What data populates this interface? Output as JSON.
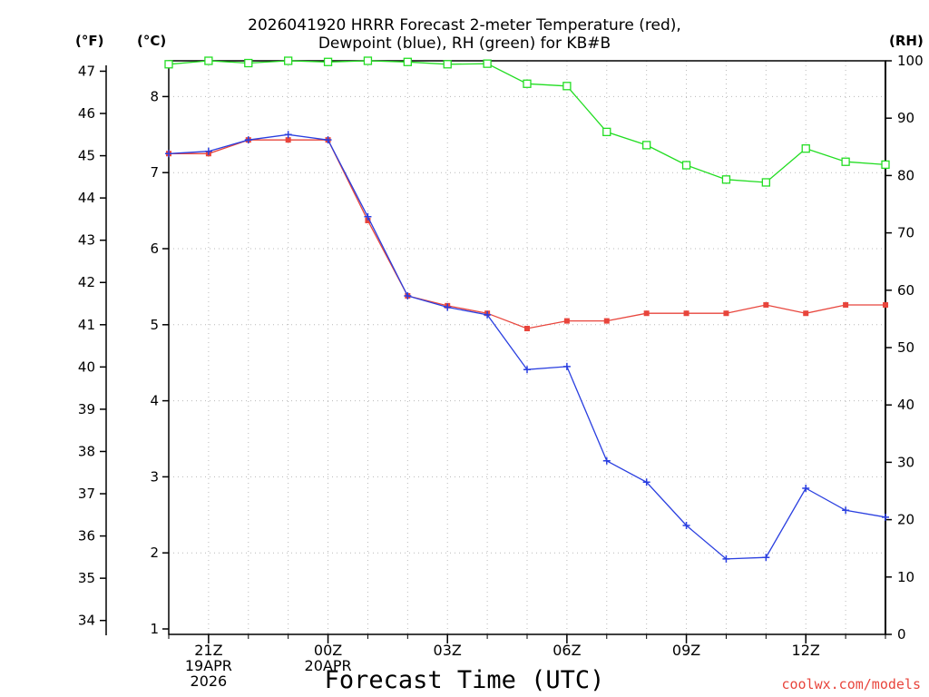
{
  "header": {
    "title_line1": "2026041920 HRRR Forecast 2-meter Temperature (red),",
    "title_line2": "Dewpoint (blue), RH (green) for KB#B",
    "unit_f": "(°F)",
    "unit_c": "(°C)",
    "unit_rh": "(RH)"
  },
  "footer": {
    "xlabel": "Forecast Time (UTC)",
    "credit": "coolwx.com/models"
  },
  "colors": {
    "temperature": "#e8453c",
    "dewpoint": "#2a3fe0",
    "rh": "#22dd22",
    "grid": "#b8b8b8"
  },
  "chart_data": {
    "type": "line",
    "x_hours": [
      0,
      1,
      2,
      3,
      4,
      5,
      6,
      7,
      8,
      9,
      10,
      11,
      12,
      13,
      14,
      15,
      16,
      17,
      18
    ],
    "x_tick_labels": [
      {
        "hour": 1,
        "lines": [
          "21Z",
          "19APR",
          "2026"
        ]
      },
      {
        "hour": 4,
        "lines": [
          "00Z",
          "20APR"
        ]
      },
      {
        "hour": 7,
        "lines": [
          "03Z"
        ]
      },
      {
        "hour": 10,
        "lines": [
          "06Z"
        ]
      },
      {
        "hour": 13,
        "lines": [
          "09Z"
        ]
      },
      {
        "hour": 16,
        "lines": [
          "12Z"
        ]
      }
    ],
    "xlim": [
      0,
      18
    ],
    "y_left_c": {
      "label": "(°C)",
      "range": [
        0.9,
        8.45
      ],
      "ticks": [
        1,
        2,
        3,
        4,
        5,
        6,
        7,
        8
      ]
    },
    "y_left_f": {
      "label": "(°F)",
      "ticks": [
        34,
        35,
        36,
        37,
        38,
        39,
        40,
        41,
        42,
        43,
        44,
        45,
        46,
        47
      ]
    },
    "y_right_rh": {
      "label": "(RH)",
      "range": [
        0,
        100
      ],
      "ticks": [
        0,
        10,
        20,
        30,
        40,
        50,
        60,
        70,
        80,
        90,
        100
      ]
    },
    "grid": true,
    "series": [
      {
        "name": "Temperature",
        "axis": "c",
        "color": "#e8453c",
        "marker": "filled-square",
        "values": [
          7.25,
          7.25,
          7.43,
          7.43,
          7.43,
          6.37,
          5.38,
          5.25,
          5.15,
          4.95,
          5.05,
          5.05,
          5.15,
          5.15,
          5.15,
          5.26,
          5.15,
          5.26,
          5.26
        ]
      },
      {
        "name": "Dewpoint",
        "axis": "c",
        "color": "#2a3fe0",
        "marker": "plus",
        "values": [
          7.25,
          7.28,
          7.43,
          7.5,
          7.43,
          6.42,
          5.38,
          5.23,
          5.13,
          4.41,
          4.45,
          3.21,
          2.93,
          2.36,
          1.92,
          1.94,
          2.85,
          2.56,
          2.47
        ]
      },
      {
        "name": "RH",
        "axis": "rh",
        "color": "#22dd22",
        "marker": "open-square",
        "values": [
          99.4,
          100,
          99.6,
          100,
          99.8,
          100,
          99.8,
          99.4,
          99.5,
          96.0,
          95.6,
          87.6,
          85.3,
          81.8,
          79.3,
          78.8,
          84.7,
          82.4,
          81.9
        ]
      }
    ]
  }
}
